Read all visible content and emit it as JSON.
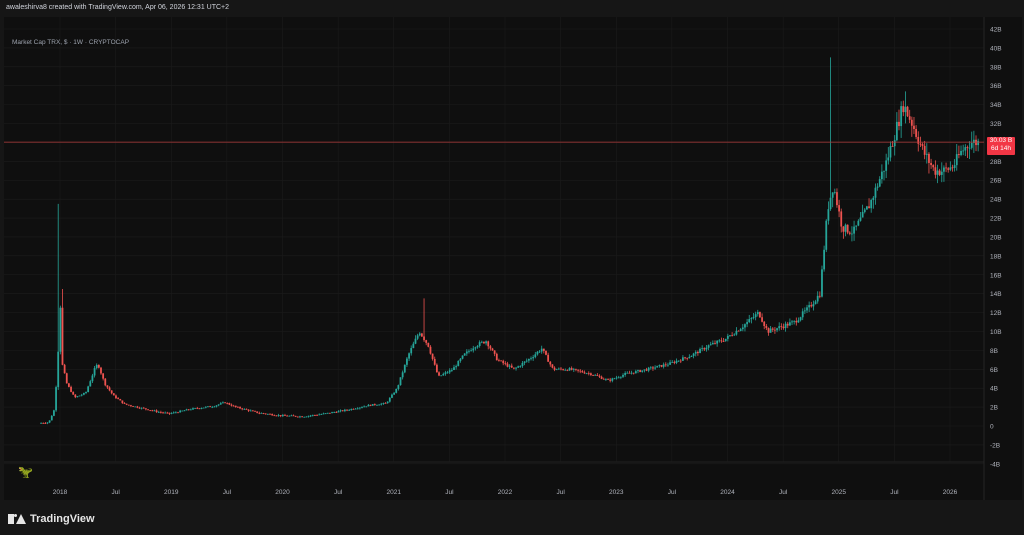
{
  "header": {
    "credit": "awaleshirva8 created with TradingView.com, Apr 06, 2026 12:31 UTC+2"
  },
  "symbol": {
    "label": "Market Cap TRX, $ · 1W · CRYPTOCAP"
  },
  "footer": {
    "brand": "TradingView"
  },
  "price_tag": {
    "value": "30.03 B",
    "countdown": "6d 14h"
  },
  "colors": {
    "up": "#26a69a",
    "down": "#ef5350",
    "last_line": "#b23a3a",
    "grid": "#1c1c1c",
    "text": "#b2b5be"
  },
  "chart_data": {
    "type": "candlestick",
    "title": "Market Cap TRX, $ · 1W · CRYPTOCAP",
    "yticks": [
      "42B",
      "40B",
      "38B",
      "36B",
      "34B",
      "32B",
      "30B",
      "28B",
      "26B",
      "24B",
      "22B",
      "20B",
      "18B",
      "16B",
      "14B",
      "12B",
      "10B",
      "8B",
      "6B",
      "4B",
      "2B",
      "0",
      "-2B",
      "-4B"
    ],
    "xticks": [
      "2018",
      "Jul",
      "2019",
      "Jul",
      "2020",
      "Jul",
      "2021",
      "Jul",
      "2022",
      "Jul",
      "2023",
      "Jul",
      "2024",
      "Jul",
      "2025",
      "Jul",
      "2026"
    ],
    "ylim": [
      -5,
      43
    ],
    "last_value_billions": 30.03,
    "trend": [
      [
        2017.83,
        0.3
      ],
      [
        2017.92,
        0.4
      ],
      [
        2017.97,
        1.8
      ],
      [
        2018.0,
        7.0
      ],
      [
        2018.02,
        13.5
      ],
      [
        2018.04,
        6.5
      ],
      [
        2018.08,
        4.5
      ],
      [
        2018.15,
        3.0
      ],
      [
        2018.25,
        3.5
      ],
      [
        2018.33,
        6.0
      ],
      [
        2018.36,
        6.6
      ],
      [
        2018.42,
        4.5
      ],
      [
        2018.5,
        3.2
      ],
      [
        2018.6,
        2.3
      ],
      [
        2018.75,
        1.9
      ],
      [
        2018.9,
        1.5
      ],
      [
        2019.0,
        1.3
      ],
      [
        2019.2,
        1.8
      ],
      [
        2019.4,
        2.1
      ],
      [
        2019.5,
        2.5
      ],
      [
        2019.6,
        2.0
      ],
      [
        2019.8,
        1.4
      ],
      [
        2020.0,
        1.1
      ],
      [
        2020.2,
        1.0
      ],
      [
        2020.4,
        1.3
      ],
      [
        2020.6,
        1.7
      ],
      [
        2020.8,
        2.2
      ],
      [
        2020.95,
        2.4
      ],
      [
        2021.05,
        4.0
      ],
      [
        2021.15,
        7.5
      ],
      [
        2021.25,
        10.0
      ],
      [
        2021.33,
        8.5
      ],
      [
        2021.42,
        5.2
      ],
      [
        2021.55,
        6.0
      ],
      [
        2021.65,
        7.5
      ],
      [
        2021.75,
        8.5
      ],
      [
        2021.85,
        9.0
      ],
      [
        2021.95,
        7.0
      ],
      [
        2022.1,
        6.0
      ],
      [
        2022.25,
        7.2
      ],
      [
        2022.35,
        8.2
      ],
      [
        2022.45,
        6.0
      ],
      [
        2022.6,
        6.0
      ],
      [
        2022.8,
        5.5
      ],
      [
        2022.95,
        4.8
      ],
      [
        2023.1,
        5.5
      ],
      [
        2023.3,
        6.0
      ],
      [
        2023.5,
        6.6
      ],
      [
        2023.7,
        7.5
      ],
      [
        2023.85,
        8.5
      ],
      [
        2024.0,
        9.2
      ],
      [
        2024.15,
        10.5
      ],
      [
        2024.3,
        12.0
      ],
      [
        2024.38,
        10.0
      ],
      [
        2024.5,
        10.5
      ],
      [
        2024.62,
        11.0
      ],
      [
        2024.75,
        12.5
      ],
      [
        2024.85,
        14.0
      ],
      [
        2024.92,
        23.0
      ],
      [
        2024.97,
        25.5
      ],
      [
        2025.05,
        21.0
      ],
      [
        2025.15,
        20.5
      ],
      [
        2025.3,
        23.5
      ],
      [
        2025.45,
        28.0
      ],
      [
        2025.55,
        32.0
      ],
      [
        2025.6,
        34.0
      ],
      [
        2025.68,
        32.0
      ],
      [
        2025.78,
        29.0
      ],
      [
        2025.88,
        27.0
      ],
      [
        2025.97,
        27.0
      ],
      [
        2026.05,
        27.5
      ],
      [
        2026.12,
        29.0
      ],
      [
        2026.2,
        30.0
      ],
      [
        2026.26,
        30.03
      ]
    ],
    "spikes": [
      {
        "t": 2017.99,
        "high": 23.5
      },
      {
        "t": 2018.02,
        "high": 14.5
      },
      {
        "t": 2021.28,
        "high": 13.5
      },
      {
        "t": 2024.92,
        "high": 39.0
      },
      {
        "t": 2025.6,
        "high": 35.4
      }
    ]
  }
}
